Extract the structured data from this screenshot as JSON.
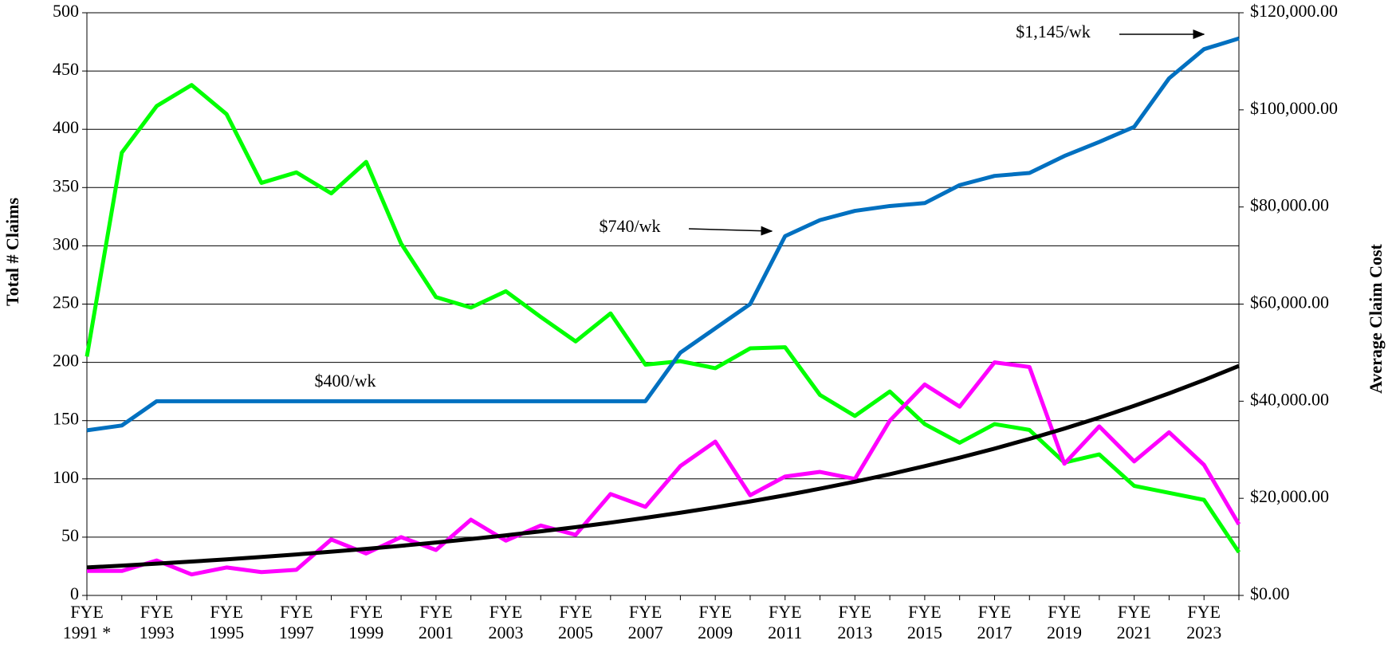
{
  "chart_data": {
    "type": "line",
    "y_label": "Total # Claims",
    "y2_label": "Average Claim Cost",
    "categories": [
      "FYE 1991 *",
      null,
      "FYE 1993",
      null,
      "FYE 1995",
      null,
      "FYE 1997",
      null,
      "FYE 1999",
      null,
      "FYE 2001",
      null,
      "FYE 2003",
      null,
      "FYE 2005",
      null,
      "FYE 2007",
      null,
      "FYE 2009",
      null,
      "FYE 2011",
      null,
      "FYE 2013",
      null,
      "FYE 2015",
      null,
      "FYE 2017",
      null,
      "FYE 2019",
      null,
      "FYE 2021",
      null,
      "FYE 2023",
      null
    ],
    "series": [
      {
        "color": "#00ff00",
        "values": [
          205,
          380,
          420,
          438,
          413,
          354,
          363,
          345,
          372,
          302,
          256,
          247,
          261,
          239,
          218,
          242,
          198,
          201,
          195,
          212,
          213,
          172,
          154,
          175,
          147,
          131,
          147,
          142,
          114,
          121,
          94,
          88,
          82,
          37
        ]
      },
      {
        "color": "#ff00ff",
        "values": [
          21,
          21,
          30,
          18,
          24,
          20,
          22,
          48,
          36,
          50,
          39,
          65,
          47,
          60,
          52,
          87,
          76,
          111,
          132,
          86,
          102,
          106,
          100,
          150,
          181,
          162,
          200,
          196,
          113,
          145,
          115,
          140,
          112,
          61
        ]
      },
      {
        "color": "#0070c0",
        "axis": "y2",
        "values": [
          34000,
          35000,
          40000,
          40000,
          40000,
          40000,
          40000,
          40000,
          40000,
          40000,
          40000,
          40000,
          40000,
          40000,
          40000,
          40000,
          40000,
          50000,
          55000,
          60000,
          74000,
          77300,
          79200,
          80200,
          80800,
          84500,
          86400,
          87000,
          90500,
          93400,
          96500,
          106500,
          112500,
          114700
        ]
      },
      {
        "color": "#000000",
        "axis": "y2",
        "values": [
          5760,
          6140,
          6540,
          6970,
          7430,
          7920,
          8440,
          9000,
          9590,
          10220,
          10900,
          11610,
          12380,
          13190,
          14060,
          14990,
          15980,
          17030,
          18150,
          19350,
          20620,
          21980,
          23430,
          24970,
          26620,
          28370,
          30240,
          32240,
          34360,
          36620,
          39040,
          41610,
          44350,
          47270
        ]
      }
    ],
    "ylim": [
      0,
      500
    ],
    "yticks": [
      0,
      50,
      100,
      150,
      200,
      250,
      300,
      350,
      400,
      450,
      500
    ],
    "y2lim": [
      0,
      120000
    ],
    "y2ticks": [
      {
        "value": 0,
        "label": "$0.00"
      },
      {
        "value": 20000,
        "label": "$20,000.00"
      },
      {
        "value": 40000,
        "label": "$40,000.00"
      },
      {
        "value": 60000,
        "label": "$60,000.00"
      },
      {
        "value": 80000,
        "label": "$80,000.00"
      },
      {
        "value": 100000,
        "label": "$100,000.00"
      },
      {
        "value": 120000,
        "label": "$120,000.00"
      }
    ],
    "grid": true,
    "annotations": [
      "$1,145/wk",
      "$740/wk",
      "$400/wk"
    ]
  }
}
